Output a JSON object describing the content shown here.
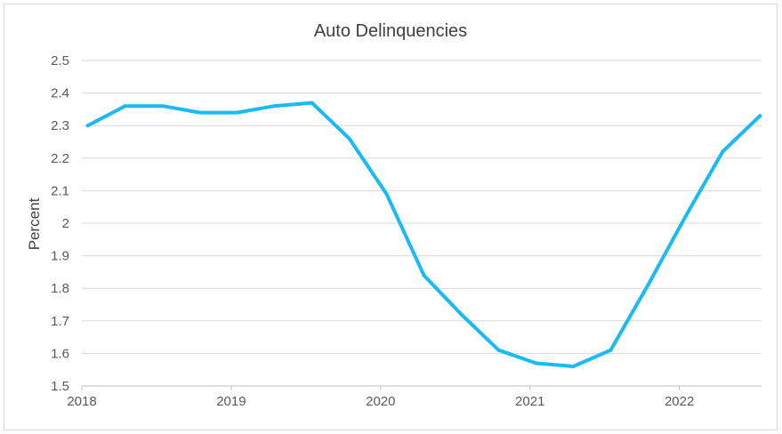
{
  "chart_data": {
    "type": "line",
    "title": "Auto Delinquencies",
    "xlabel": "",
    "ylabel": "Percent",
    "x_tick_labels": [
      "2018",
      "2019",
      "2020",
      "2021",
      "2022"
    ],
    "y_tick_labels": [
      "1.5",
      "1.6",
      "1.7",
      "1.8",
      "1.9",
      "2",
      "2.1",
      "2.2",
      "2.3",
      "2.4",
      "2.5"
    ],
    "ylim": [
      1.5,
      2.5
    ],
    "xlim": [
      2018.0,
      2022.55
    ],
    "grid": true,
    "legend": "none",
    "series": [
      {
        "color": "#19bbf5",
        "x": [
          2018.04,
          2018.29,
          2018.54,
          2018.79,
          2019.04,
          2019.29,
          2019.54,
          2019.79,
          2020.04,
          2020.29,
          2020.54,
          2020.79,
          2021.04,
          2021.29,
          2021.54,
          2021.79,
          2022.04,
          2022.29,
          2022.54
        ],
        "values": [
          2.3,
          2.36,
          2.36,
          2.34,
          2.34,
          2.36,
          2.37,
          2.26,
          2.09,
          1.84,
          1.72,
          1.61,
          1.57,
          1.56,
          1.61,
          1.81,
          2.02,
          2.22,
          2.33
        ]
      }
    ]
  }
}
